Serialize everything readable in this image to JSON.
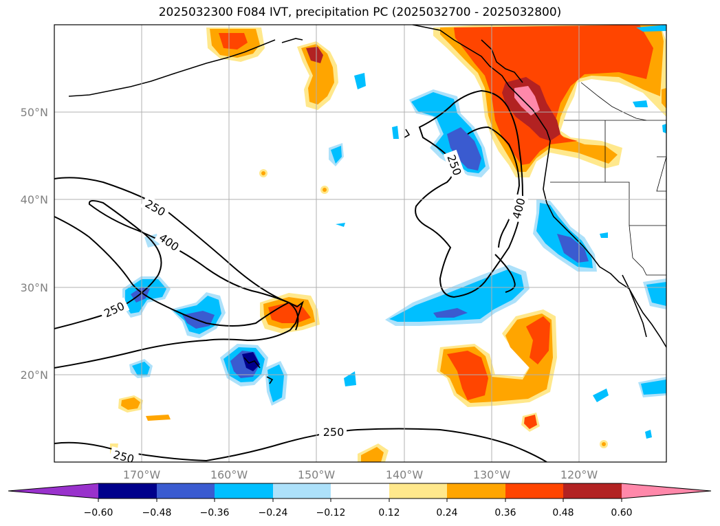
{
  "title": "2025032300 F084 IVT, precipitation PC (2025032700 - 2025032800)",
  "colors": {
    "lt_m060": "#9932CC",
    "m060_m048": "#00008B",
    "m048_m036": "#3A5BD0",
    "m036_m024": "#00BFFF",
    "m024_m012": "#ADE1FA",
    "m012_012": "#FFFFFF",
    "p012_p024": "#FFE88C",
    "p024_p036": "#FFA500",
    "p036_p048": "#FF4500",
    "p048_p060": "#B22222",
    "gt_p060": "#FF88AA",
    "grid": "#b0b0b0",
    "contour": "#000000",
    "tick_label": "#808080"
  },
  "map": {
    "projection": "PlateCarree",
    "lon_range": [
      -180,
      -110
    ],
    "lat_range": [
      10,
      60
    ],
    "lat_labels": [
      "50°N",
      "40°N",
      "30°N",
      "20°N"
    ],
    "lon_labels": [
      "170°W",
      "160°W",
      "150°W",
      "140°W",
      "130°W",
      "120°W"
    ]
  },
  "contours": {
    "levels": [
      250,
      400
    ],
    "labels": [
      "250",
      "400",
      "250",
      "250",
      "400",
      "250",
      "250"
    ]
  },
  "colorbar": {
    "ticks": [
      "−0.60",
      "−0.48",
      "−0.36",
      "−0.24",
      "−0.12",
      "0.12",
      "0.24",
      "0.36",
      "0.48",
      "0.60"
    ],
    "extend": "both"
  }
}
